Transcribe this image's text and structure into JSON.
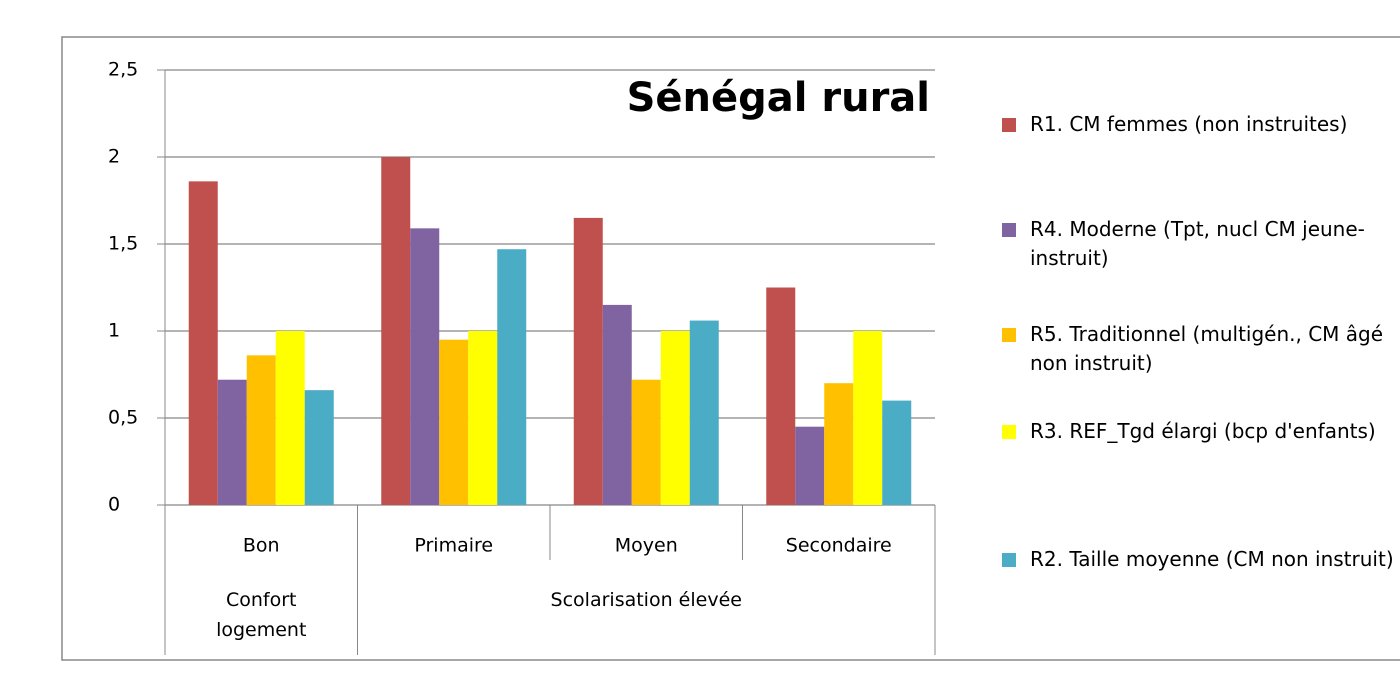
{
  "chart_data": {
    "type": "bar",
    "title": "Sénégal rural",
    "categories": [
      "Bon",
      "Primaire",
      "Moyen",
      "Secondaire"
    ],
    "groups": [
      {
        "label": "Confort logement",
        "count": 1
      },
      {
        "label": "Scolarisation élevée",
        "count": 3
      }
    ],
    "series": [
      {
        "name": "R1. CM femmes (non instruites)",
        "color": "#c0504d",
        "values": [
          1.86,
          2.0,
          1.65,
          1.25
        ]
      },
      {
        "name": "R4. Moderne (Tpt, nucl CM jeune-instruit)",
        "color": "#8064a2",
        "values": [
          0.72,
          1.59,
          1.15,
          0.45
        ]
      },
      {
        "name": "R5. Traditionnel (multigén., CM âgé non instruit)",
        "color": "#ffc000",
        "values": [
          0.86,
          0.95,
          0.72,
          0.7
        ]
      },
      {
        "name": "R3. REF_Tgd élargi (bcp d'enfants)",
        "color": "#ffff00",
        "values": [
          1.0,
          1.0,
          1.0,
          1.0
        ]
      },
      {
        "name": "R2. Taille moyenne (CM non instruit)",
        "color": "#4bacc6",
        "values": [
          0.66,
          1.47,
          1.06,
          0.6
        ]
      }
    ],
    "ylim": [
      0,
      2.5
    ],
    "yticks": [
      0,
      {
        "value": 0.5,
        "label": "0,5"
      },
      1,
      {
        "value": 1.5,
        "label": "1,5"
      },
      2,
      {
        "value": 2.5,
        "label": "2,5"
      }
    ],
    "grid": true
  }
}
